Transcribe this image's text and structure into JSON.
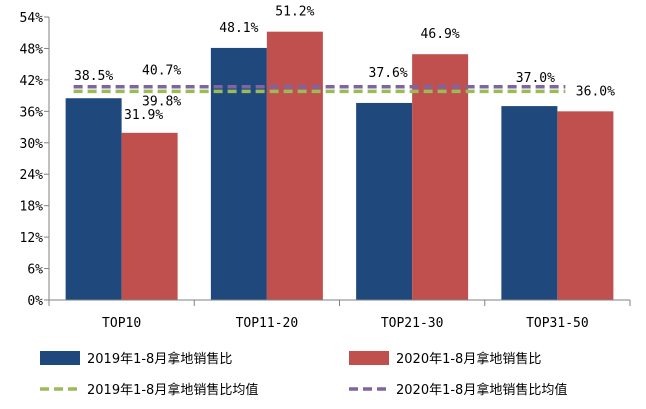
{
  "chart_data": {
    "type": "bar",
    "categories": [
      "TOP10",
      "TOP11-20",
      "TOP21-30",
      "TOP31-50"
    ],
    "series": [
      {
        "name": "2019年1-8月拿地销售比",
        "values": [
          38.5,
          48.1,
          37.6,
          37.0
        ],
        "labels": [
          "38.5%",
          "48.1%",
          "37.6%",
          "37.0%"
        ],
        "color": "#1F497D"
      },
      {
        "name": "2020年1-8月拿地销售比",
        "values": [
          31.9,
          51.2,
          46.9,
          36.0
        ],
        "labels": [
          "31.9%",
          "51.2%",
          "46.9%",
          "36.0%"
        ],
        "color": "#C0504D"
      }
    ],
    "reference_lines": [
      {
        "name": "2019年1-8月拿地销售比均值",
        "value": 39.8,
        "label": "39.8%",
        "color": "#9BBB59"
      },
      {
        "name": "2020年1-8月拿地销售比均值",
        "value": 40.7,
        "label": "40.7%",
        "color": "#8064A2"
      }
    ],
    "y_ticks": [
      "0%",
      "6%",
      "12%",
      "18%",
      "24%",
      "30%",
      "36%",
      "42%",
      "48%",
      "54%"
    ],
    "ylim": [
      0,
      54
    ],
    "title": "",
    "xlabel": "",
    "ylabel": "",
    "legend_position": "bottom"
  }
}
